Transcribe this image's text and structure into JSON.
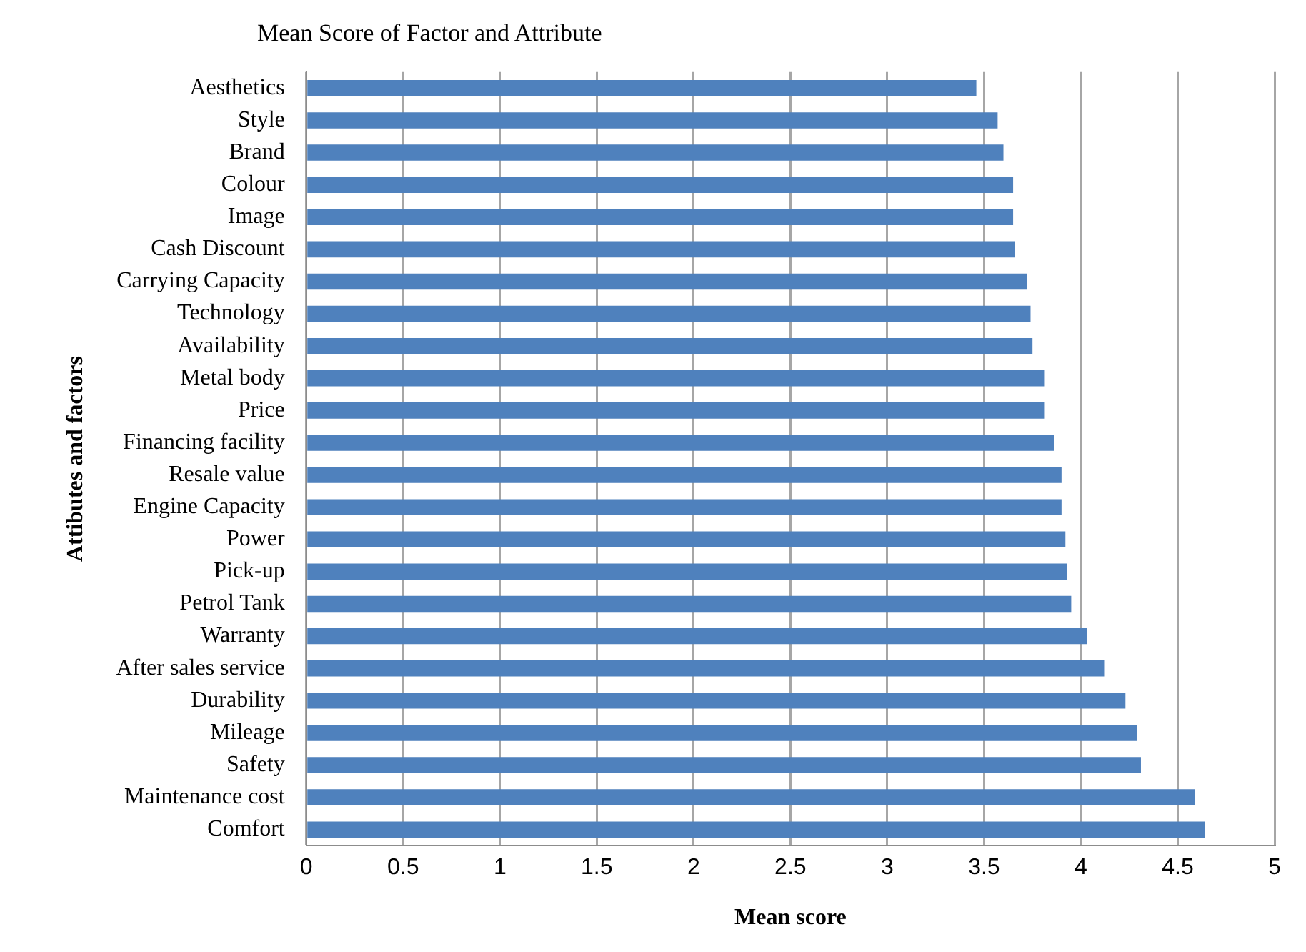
{
  "chart_data": {
    "type": "bar",
    "orientation": "horizontal",
    "title": "Mean Score of Factor and Attribute",
    "xlabel": "Mean score",
    "ylabel": "Attibutes and factors",
    "categories": [
      "Aesthetics",
      "Style",
      "Brand",
      "Colour",
      "Image",
      "Cash Discount",
      "Carrying Capacity",
      "Technology",
      "Availability",
      "Metal body",
      "Price",
      "Financing facility",
      "Resale value",
      "Engine Capacity",
      "Power",
      "Pick-up",
      "Petrol Tank",
      "Warranty",
      "After sales service",
      "Durability",
      "Mileage",
      "Safety",
      "Maintenance cost",
      "Comfort"
    ],
    "values": [
      3.46,
      3.57,
      3.6,
      3.65,
      3.65,
      3.66,
      3.72,
      3.74,
      3.75,
      3.81,
      3.81,
      3.86,
      3.9,
      3.9,
      3.92,
      3.93,
      3.95,
      4.03,
      4.12,
      4.23,
      4.29,
      4.31,
      4.59,
      4.64
    ],
    "color": "#4f81bd",
    "xlim": [
      0,
      5
    ],
    "xticks": [
      0,
      0.5,
      1,
      1.5,
      2,
      2.5,
      3,
      3.5,
      4,
      4.5,
      5
    ],
    "grid": "x",
    "legend": false
  }
}
